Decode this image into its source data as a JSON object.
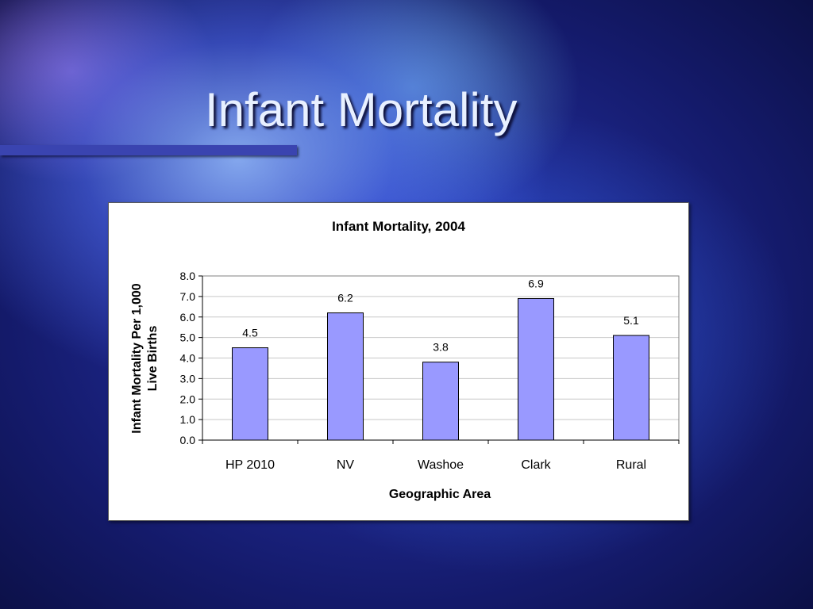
{
  "slide": {
    "title": "Infant Mortality"
  },
  "chart_data": {
    "type": "bar",
    "title": "Infant Mortality, 2004",
    "xlabel": "Geographic Area",
    "ylabel_lines": [
      "Infant Mortality Per 1,000",
      "Live Births"
    ],
    "categories": [
      "HP 2010",
      "NV",
      "Washoe",
      "Clark",
      "Rural"
    ],
    "values": [
      4.5,
      6.2,
      3.8,
      6.9,
      5.1
    ],
    "value_labels": [
      "4.5",
      "6.2",
      "3.8",
      "6.9",
      "5.1"
    ],
    "y_ticks": [
      "0.0",
      "1.0",
      "2.0",
      "3.0",
      "4.0",
      "5.0",
      "6.0",
      "7.0",
      "8.0"
    ],
    "ylim": [
      0,
      8
    ],
    "grid": true,
    "legend": "none",
    "bar_color": "#9999ff"
  }
}
